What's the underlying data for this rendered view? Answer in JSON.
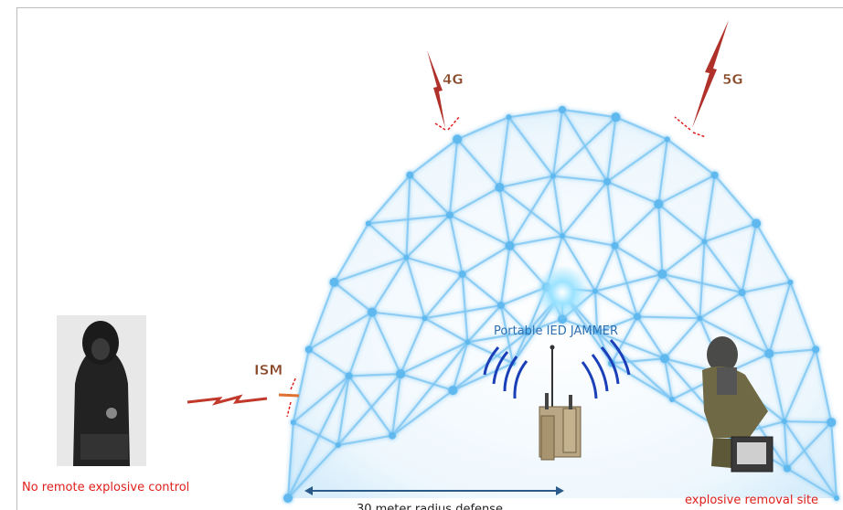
{
  "signals": {
    "g4": "4G",
    "g5": "5G",
    "ism": "ISM"
  },
  "device": {
    "label": "Portable IED JAMMER"
  },
  "left_caption": "No remote explosive control",
  "right_caption": "explosive removal site",
  "range_caption": "30 meter radius defense"
}
